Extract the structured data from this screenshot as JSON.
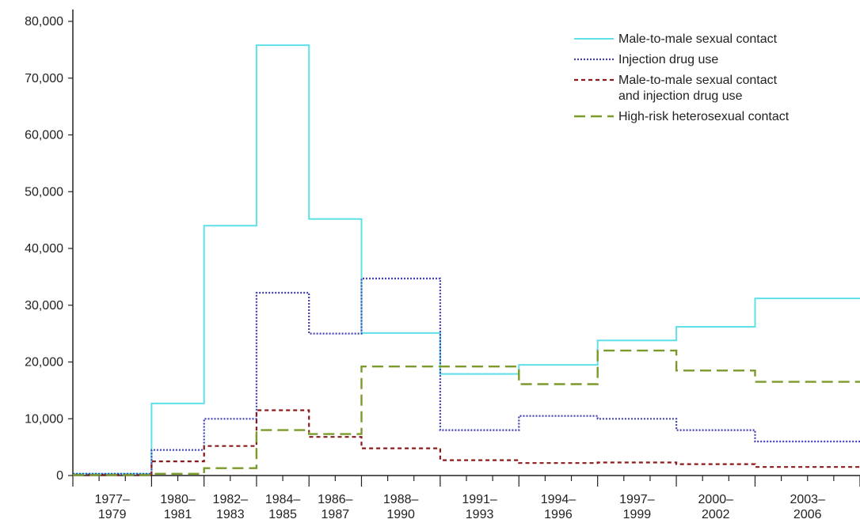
{
  "chart_data": {
    "type": "line",
    "title": "",
    "xlabel": "",
    "ylabel": "",
    "ylim": [
      0,
      80000
    ],
    "y_ticks": [
      "80,000",
      "70,000",
      "60,000",
      "50,000",
      "40,000",
      "30,000",
      "20,000",
      "10,000",
      "0"
    ],
    "y_tick_values": [
      80000,
      70000,
      60000,
      50000,
      40000,
      30000,
      20000,
      10000,
      0
    ],
    "x_year_start": 1977,
    "x_year_end": 2007,
    "categories": [
      {
        "top": "1977–",
        "bottom": "1979",
        "start": 1977,
        "end": 1980
      },
      {
        "top": "1980–",
        "bottom": "1981",
        "start": 1980,
        "end": 1982
      },
      {
        "top": "1982–",
        "bottom": "1983",
        "start": 1982,
        "end": 1984
      },
      {
        "top": "1984–",
        "bottom": "1985",
        "start": 1984,
        "end": 1986
      },
      {
        "top": "1986–",
        "bottom": "1987",
        "start": 1986,
        "end": 1988
      },
      {
        "top": "1988–",
        "bottom": "1990",
        "start": 1988,
        "end": 1991
      },
      {
        "top": "1991–",
        "bottom": "1993",
        "start": 1991,
        "end": 1994
      },
      {
        "top": "1994–",
        "bottom": "1996",
        "start": 1994,
        "end": 1997
      },
      {
        "top": "1997–",
        "bottom": "1999",
        "start": 1997,
        "end": 2000
      },
      {
        "top": "2000–",
        "bottom": "2002",
        "start": 2000,
        "end": 2003
      },
      {
        "top": "2003–",
        "bottom": "2006",
        "start": 2003,
        "end": 2007
      }
    ],
    "series": [
      {
        "name": "Male-to-male sexual contact",
        "color": "#5fe0e6",
        "dash": "solid",
        "values": [
          300,
          12700,
          44000,
          75800,
          45200,
          25100,
          17900,
          19500,
          23800,
          26200,
          31200
        ]
      },
      {
        "name": "Injection drug use",
        "color": "#4040b0",
        "dash": "dotted",
        "values": [
          300,
          4500,
          10000,
          32200,
          25000,
          34700,
          8000,
          10500,
          10000,
          8000,
          6000
        ]
      },
      {
        "name": "Male-to-male sexual contact and injection drug use",
        "legend_lines": [
          "Male-to-male sexual contact",
          "and injection drug use"
        ],
        "color": "#8b1a1a",
        "dash": "dashed",
        "values": [
          100,
          2500,
          5200,
          11500,
          6800,
          4800,
          2700,
          2200,
          2300,
          2000,
          1500
        ]
      },
      {
        "name": "High-risk heterosexual contact",
        "color": "#7a9a2a",
        "dash": "longdash",
        "values": [
          100,
          300,
          1300,
          8000,
          7300,
          19200,
          19200,
          16100,
          22000,
          18500,
          16500
        ]
      }
    ],
    "legend_position": "top-right",
    "grid": false
  }
}
